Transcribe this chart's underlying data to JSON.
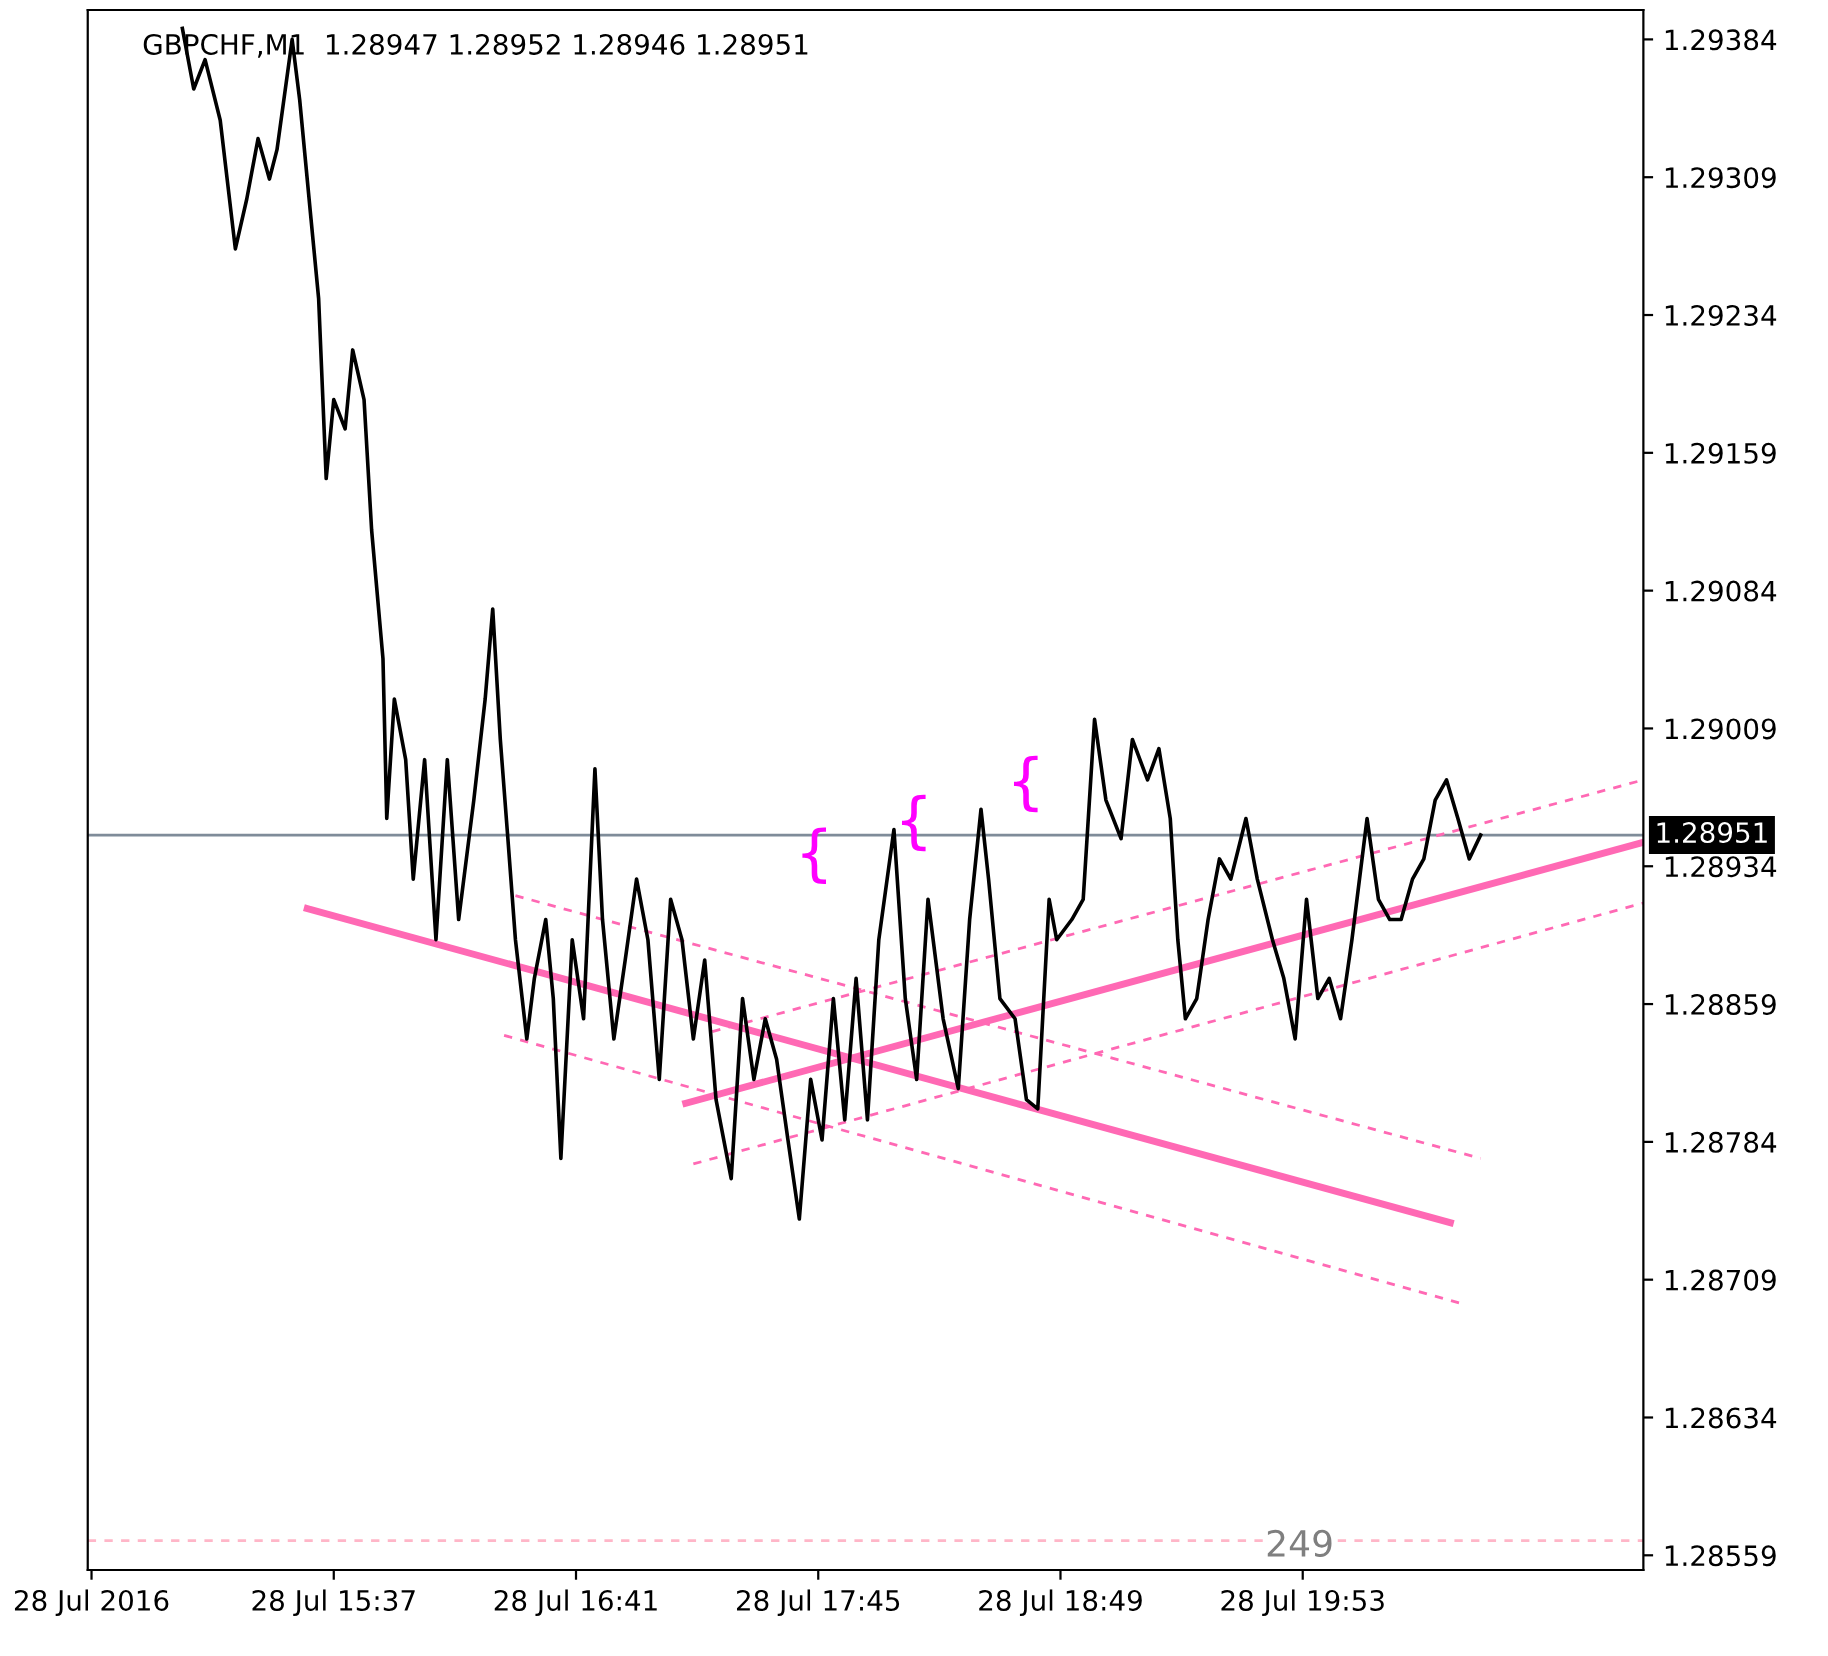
{
  "chart_data": {
    "type": "line",
    "title": "GBPCHF,M1  1.28947 1.28952 1.28946 1.28951",
    "xlim": [
      "2016-07-28T14:32",
      "2016-07-28T21:23"
    ],
    "xticks": [
      {
        "value": "2016-07-28T14:33",
        "label": "28 Jul 2016"
      },
      {
        "value": "2016-07-28T15:37",
        "label": "28 Jul 15:37"
      },
      {
        "value": "2016-07-28T16:41",
        "label": "28 Jul 16:41"
      },
      {
        "value": "2016-07-28T17:45",
        "label": "28 Jul 17:45"
      },
      {
        "value": "2016-07-28T18:49",
        "label": "28 Jul 18:49"
      },
      {
        "value": "2016-07-28T19:53",
        "label": "28 Jul 19:53"
      }
    ],
    "ylim": [
      1.28551,
      1.294
    ],
    "yticks": [
      1.28559,
      1.28634,
      1.28709,
      1.28784,
      1.28859,
      1.28934,
      1.29009,
      1.29084,
      1.29159,
      1.29234,
      1.29309,
      1.29384
    ],
    "grid": false,
    "legend": false,
    "series": [
      {
        "color": "#000000",
        "line_style": "solid",
        "x": [
          "2016-07-28T14:57",
          "2016-07-28T15:00",
          "2016-07-28T15:03",
          "2016-07-28T15:07",
          "2016-07-28T15:11",
          "2016-07-28T15:14",
          "2016-07-28T15:17",
          "2016-07-28T15:20",
          "2016-07-28T15:22",
          "2016-07-28T15:26",
          "2016-07-28T15:28",
          "2016-07-28T15:31",
          "2016-07-28T15:33",
          "2016-07-28T15:35",
          "2016-07-28T15:37",
          "2016-07-28T15:40",
          "2016-07-28T15:42",
          "2016-07-28T15:45",
          "2016-07-28T15:47",
          "2016-07-28T15:50",
          "2016-07-28T15:51",
          "2016-07-28T15:53",
          "2016-07-28T15:56",
          "2016-07-28T15:58",
          "2016-07-28T16:01",
          "2016-07-28T16:04",
          "2016-07-28T16:07",
          "2016-07-28T16:10",
          "2016-07-28T16:14",
          "2016-07-28T16:17",
          "2016-07-28T16:19",
          "2016-07-28T16:21",
          "2016-07-28T16:23",
          "2016-07-28T16:25",
          "2016-07-28T16:28",
          "2016-07-28T16:30",
          "2016-07-28T16:33",
          "2016-07-28T16:35",
          "2016-07-28T16:37",
          "2016-07-28T16:40",
          "2016-07-28T16:43",
          "2016-07-28T16:46",
          "2016-07-28T16:48",
          "2016-07-28T16:51",
          "2016-07-28T16:54",
          "2016-07-28T16:57",
          "2016-07-28T17:00",
          "2016-07-28T17:03",
          "2016-07-28T17:06",
          "2016-07-28T17:09",
          "2016-07-28T17:12",
          "2016-07-28T17:15",
          "2016-07-28T17:18",
          "2016-07-28T17:22",
          "2016-07-28T17:25",
          "2016-07-28T17:28",
          "2016-07-28T17:31",
          "2016-07-28T17:34",
          "2016-07-28T17:37",
          "2016-07-28T17:40",
          "2016-07-28T17:43",
          "2016-07-28T17:46",
          "2016-07-28T17:49",
          "2016-07-28T17:52",
          "2016-07-28T17:55",
          "2016-07-28T17:58",
          "2016-07-28T18:01",
          "2016-07-28T18:05",
          "2016-07-28T18:08",
          "2016-07-28T18:11",
          "2016-07-28T18:14",
          "2016-07-28T18:18",
          "2016-07-28T18:22",
          "2016-07-28T18:25",
          "2016-07-28T18:28",
          "2016-07-28T18:30",
          "2016-07-28T18:33",
          "2016-07-28T18:37",
          "2016-07-28T18:40",
          "2016-07-28T18:43",
          "2016-07-28T18:46",
          "2016-07-28T18:48",
          "2016-07-28T18:52",
          "2016-07-28T18:55",
          "2016-07-28T18:58",
          "2016-07-28T19:01",
          "2016-07-28T19:05",
          "2016-07-28T19:08",
          "2016-07-28T19:12",
          "2016-07-28T19:15",
          "2016-07-28T19:18",
          "2016-07-28T19:20",
          "2016-07-28T19:22",
          "2016-07-28T19:25",
          "2016-07-28T19:28",
          "2016-07-28T19:31",
          "2016-07-28T19:34",
          "2016-07-28T19:38",
          "2016-07-28T19:41",
          "2016-07-28T19:45",
          "2016-07-28T19:48",
          "2016-07-28T19:51",
          "2016-07-28T19:54",
          "2016-07-28T19:57",
          "2016-07-28T20:00",
          "2016-07-28T20:03",
          "2016-07-28T20:06",
          "2016-07-28T20:10",
          "2016-07-28T20:13",
          "2016-07-28T20:16",
          "2016-07-28T20:19",
          "2016-07-28T20:22",
          "2016-07-28T20:25",
          "2016-07-28T20:28",
          "2016-07-28T20:31",
          "2016-07-28T20:34",
          "2016-07-28T20:37",
          "2016-07-28T20:40"
        ],
        "values": [
          1.2939,
          1.29357,
          1.29373,
          1.2934,
          1.2927,
          1.29297,
          1.2933,
          1.29308,
          1.29324,
          1.29384,
          1.29351,
          1.29286,
          1.29243,
          1.29145,
          1.29188,
          1.29172,
          1.29215,
          1.29188,
          1.29117,
          1.29047,
          1.2896,
          1.29025,
          1.28992,
          1.28927,
          1.28992,
          1.28894,
          1.28992,
          1.28905,
          1.2897,
          1.29025,
          1.29074,
          1.29003,
          1.28949,
          1.28894,
          1.2884,
          1.28873,
          1.28905,
          1.28862,
          1.28775,
          1.28894,
          1.28851,
          1.28987,
          1.28905,
          1.2884,
          1.28883,
          1.28927,
          1.28894,
          1.28818,
          1.28916,
          1.28894,
          1.2884,
          1.28883,
          1.28807,
          1.28764,
          1.28862,
          1.28818,
          1.28851,
          1.28829,
          1.28785,
          1.28742,
          1.28818,
          1.28785,
          1.28862,
          1.28796,
          1.28873,
          1.28796,
          1.28894,
          1.28954,
          1.28862,
          1.28818,
          1.28916,
          1.28851,
          1.28813,
          1.28905,
          1.28965,
          1.28927,
          1.28862,
          1.28851,
          1.28807,
          1.28802,
          1.28916,
          1.28894,
          1.28905,
          1.28916,
          1.29014,
          1.2897,
          1.28949,
          1.29003,
          1.28981,
          1.28998,
          1.2896,
          1.28894,
          1.28851,
          1.28862,
          1.28905,
          1.28938,
          1.28927,
          1.2896,
          1.28927,
          1.28894,
          1.28873,
          1.2884,
          1.28916,
          1.28862,
          1.28873,
          1.28851,
          1.28894,
          1.2896,
          1.28916,
          1.28905,
          1.28905,
          1.28927,
          1.28938,
          1.2897,
          1.28981,
          1.2896,
          1.28938,
          1.28951
        ]
      },
      {
        "color": "#ff69b4",
        "line_style": "solid",
        "x": [
          "2016-07-28T15:30",
          "2016-07-28T20:32"
        ],
        "values": [
          1.28911,
          1.2874
        ]
      },
      {
        "color": "#ff69b4",
        "line_style": "dashed",
        "x": [
          "2016-07-28T16:25",
          "2016-07-28T20:40"
        ],
        "values": [
          1.28918,
          1.28775
        ]
      },
      {
        "color": "#ff69b4",
        "line_style": "dashed",
        "x": [
          "2016-07-28T16:22",
          "2016-07-28T20:35"
        ],
        "values": [
          1.28842,
          1.28696
        ]
      },
      {
        "color": "#ff69b4",
        "line_style": "solid",
        "x": [
          "2016-07-28T17:10",
          "2016-07-28T21:23"
        ],
        "values": [
          1.28805,
          1.28947
        ]
      },
      {
        "color": "#ff69b4",
        "line_style": "dashed",
        "x": [
          "2016-07-28T17:17",
          "2016-07-28T21:23"
        ],
        "values": [
          1.28844,
          1.28981
        ]
      },
      {
        "color": "#ff69b4",
        "line_style": "dashed",
        "x": [
          "2016-07-28T17:12",
          "2016-07-28T21:23"
        ],
        "values": [
          1.28772,
          1.28914
        ]
      }
    ],
    "ref_lines": [
      {
        "axis": "y",
        "value": 1.28951,
        "label": "1.28951",
        "color": "#7f8c99",
        "line_style": "solid"
      },
      {
        "axis": "y",
        "value": 1.28567,
        "color": "#ffb6c8",
        "line_style": "dashed"
      }
    ],
    "annotations": [
      "249",
      "{",
      "{",
      "{"
    ]
  }
}
